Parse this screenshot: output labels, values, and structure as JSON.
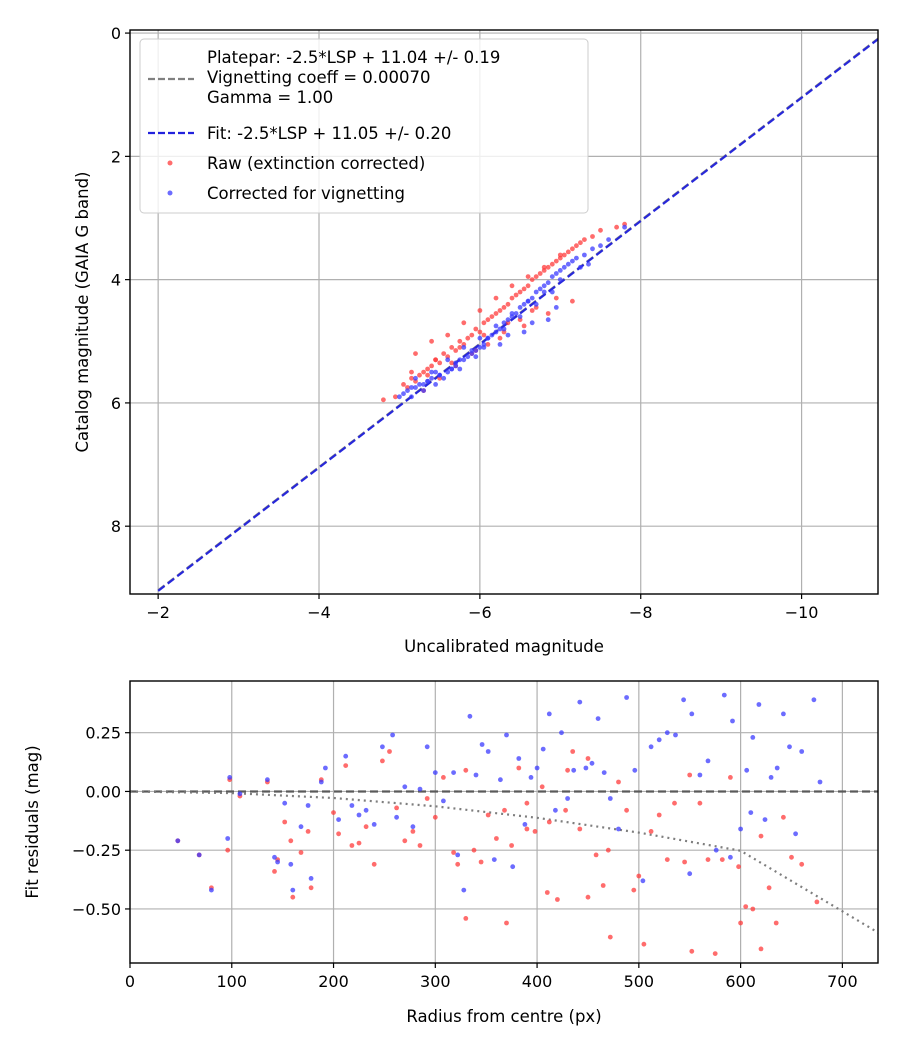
{
  "chart_data": [
    {
      "type": "scatter",
      "xlabel": "Uncalibrated magnitude",
      "ylabel": "Catalog magnitude (GAIA G band)",
      "xlim": [
        -1.65,
        -10.95
      ],
      "ylim": [
        9.1,
        -0.05
      ],
      "x_inverted": true,
      "y_inverted": true,
      "xticks": [
        -2,
        -4,
        -6,
        -8,
        -10
      ],
      "xtick_labels": [
        "−2",
        "−4",
        "−6",
        "−8",
        "−10"
      ],
      "yticks": [
        0,
        2,
        4,
        6,
        8
      ],
      "ytick_labels": [
        "0",
        "2",
        "4",
        "6",
        "8"
      ],
      "grid": true,
      "legend_position": "upper-left",
      "legend": [
        {
          "kind": "dash",
          "color": "#808080",
          "text": "Platepar: -2.5*LSP + 11.04 +/- 0.19\nVignetting coeff = 0.00070\nGamma = 1.00"
        },
        {
          "kind": "dash",
          "color": "#2222dd",
          "text": "Fit: -2.5*LSP + 11.05 +/- 0.20"
        },
        {
          "kind": "dot",
          "color": "#ff3b3b",
          "text": "Raw (extinction corrected)"
        },
        {
          "kind": "dot",
          "color": "#3b3bff",
          "text": "Corrected for vignetting"
        }
      ],
      "lines": [
        {
          "name": "Platepar",
          "color": "#808080",
          "style": "dashed",
          "x": [
            -2.0,
            -11.04
          ],
          "y": [
            9.04,
            0.0
          ]
        },
        {
          "name": "Fit",
          "color": "#2222dd",
          "style": "dashed",
          "x": [
            -2.0,
            -11.04
          ],
          "y": [
            9.05,
            0.01
          ]
        }
      ],
      "series": [
        {
          "name": "Raw (extinction corrected)",
          "color": "#ff3b3b",
          "x": [
            -4.8,
            -4.95,
            -5.05,
            -5.1,
            -5.15,
            -5.2,
            -5.25,
            -5.3,
            -5.35,
            -5.4,
            -5.45,
            -5.5,
            -5.55,
            -5.6,
            -5.65,
            -5.7,
            -5.75,
            -5.8,
            -5.85,
            -5.9,
            -5.95,
            -6.0,
            -6.05,
            -6.1,
            -6.15,
            -6.2,
            -6.25,
            -6.3,
            -6.35,
            -6.4,
            -6.45,
            -6.5,
            -6.55,
            -6.6,
            -6.65,
            -6.7,
            -6.75,
            -6.8,
            -6.85,
            -6.9,
            -6.95,
            -7.0,
            -7.05,
            -7.1,
            -7.15,
            -7.2,
            -7.25,
            -7.3,
            -7.4,
            -7.5,
            -7.7,
            -7.8,
            -5.2,
            -5.4,
            -5.6,
            -5.8,
            -6.0,
            -6.2,
            -6.4,
            -6.6,
            -6.8,
            -7.0,
            -5.3,
            -5.5,
            -5.7,
            -5.9,
            -6.1,
            -6.3,
            -6.5,
            -6.7,
            -5.15,
            -5.45,
            -5.75,
            -6.05,
            -6.35,
            -6.65,
            -6.95,
            -5.35,
            -5.65,
            -5.95,
            -6.25,
            -6.55,
            -6.85,
            -7.15
          ],
          "y": [
            5.95,
            5.9,
            5.7,
            5.75,
            5.6,
            5.65,
            5.55,
            5.5,
            5.45,
            5.4,
            5.3,
            5.35,
            5.2,
            5.25,
            5.1,
            5.15,
            5.0,
            5.05,
            4.95,
            4.9,
            4.8,
            4.85,
            4.7,
            4.65,
            4.6,
            4.55,
            4.5,
            4.45,
            4.4,
            4.3,
            4.25,
            4.2,
            4.15,
            4.1,
            4.0,
            3.95,
            3.9,
            3.85,
            3.8,
            3.75,
            3.7,
            3.65,
            3.6,
            3.55,
            3.5,
            3.45,
            3.4,
            3.35,
            3.3,
            3.2,
            3.15,
            3.1,
            5.2,
            5.0,
            4.9,
            4.7,
            4.5,
            4.3,
            4.1,
            3.95,
            3.8,
            3.6,
            5.8,
            5.6,
            5.4,
            5.2,
            5.05,
            4.85,
            4.65,
            4.45,
            5.5,
            5.3,
            5.1,
            4.9,
            4.7,
            4.5,
            4.3,
            5.55,
            5.35,
            5.15,
            4.95,
            4.75,
            4.55,
            4.35
          ]
        },
        {
          "name": "Corrected for vignetting",
          "color": "#3b3bff",
          "x": [
            -5.0,
            -5.05,
            -5.1,
            -5.15,
            -5.2,
            -5.25,
            -5.3,
            -5.35,
            -5.4,
            -5.45,
            -5.5,
            -5.55,
            -5.6,
            -5.65,
            -5.7,
            -5.75,
            -5.8,
            -5.85,
            -5.9,
            -5.95,
            -6.0,
            -6.05,
            -6.1,
            -6.15,
            -6.2,
            -6.25,
            -6.3,
            -6.35,
            -6.4,
            -6.45,
            -6.5,
            -6.55,
            -6.6,
            -6.65,
            -6.7,
            -6.75,
            -6.8,
            -6.85,
            -6.9,
            -6.95,
            -7.0,
            -7.05,
            -7.1,
            -7.15,
            -7.2,
            -7.3,
            -7.4,
            -7.5,
            -7.6,
            -7.8,
            -5.2,
            -5.4,
            -5.6,
            -5.8,
            -6.0,
            -6.2,
            -6.4,
            -6.6,
            -6.8,
            -7.0,
            -5.3,
            -5.5,
            -5.7,
            -5.9,
            -6.1,
            -6.3,
            -6.5,
            -6.7,
            -6.9,
            -5.15,
            -5.45,
            -5.75,
            -6.05,
            -6.35,
            -6.65,
            -6.95,
            -7.25,
            -5.35,
            -5.65,
            -5.95,
            -6.25,
            -6.55,
            -6.85,
            -7.35
          ],
          "y": [
            5.9,
            5.85,
            5.8,
            5.9,
            5.75,
            5.7,
            5.8,
            5.65,
            5.6,
            5.7,
            5.55,
            5.6,
            5.5,
            5.45,
            5.4,
            5.45,
            5.3,
            5.25,
            5.2,
            5.15,
            5.1,
            5.05,
            4.95,
            4.9,
            4.85,
            4.8,
            4.7,
            4.65,
            4.6,
            4.55,
            4.45,
            4.4,
            4.35,
            4.3,
            4.2,
            4.15,
            4.1,
            4.05,
            3.95,
            3.9,
            3.85,
            3.8,
            3.75,
            3.7,
            3.65,
            3.6,
            3.5,
            3.45,
            3.35,
            3.15,
            5.6,
            5.5,
            5.3,
            5.1,
            4.95,
            4.75,
            4.55,
            4.35,
            4.2,
            4.0,
            5.7,
            5.55,
            5.35,
            5.15,
            4.95,
            4.8,
            4.6,
            4.4,
            4.2,
            5.75,
            5.5,
            5.3,
            5.1,
            4.9,
            4.7,
            4.45,
            3.8,
            5.65,
            5.45,
            5.25,
            5.05,
            4.85,
            4.65,
            3.75
          ]
        }
      ]
    },
    {
      "type": "scatter",
      "xlabel": "Radius from centre (px)",
      "ylabel": "Fit residuals (mag)",
      "xlim": [
        0,
        735
      ],
      "ylim": [
        -0.73,
        0.47
      ],
      "xticks": [
        0,
        100,
        200,
        300,
        400,
        500,
        600,
        700
      ],
      "xtick_labels": [
        "0",
        "100",
        "200",
        "300",
        "400",
        "500",
        "600",
        "700"
      ],
      "yticks": [
        0.25,
        0.0,
        -0.25,
        -0.5
      ],
      "ytick_labels": [
        "0.25",
        "0.00",
        "−0.25",
        "−0.50"
      ],
      "grid": true,
      "lines": [
        {
          "name": "zero",
          "color": "#555555",
          "style": "dashed",
          "x": [
            0,
            735
          ],
          "y": [
            0,
            0
          ]
        },
        {
          "name": "vignetting",
          "color": "#777777",
          "style": "dotted",
          "x": [
            0,
            100,
            200,
            300,
            400,
            500,
            600,
            735
          ],
          "y": [
            0.0,
            -0.007,
            -0.028,
            -0.063,
            -0.112,
            -0.175,
            -0.252,
            -0.6
          ]
        }
      ],
      "series": [
        {
          "name": "Raw (extinction corrected)",
          "color": "#ff3b3b",
          "x": [
            47,
            68,
            80,
            96,
            98,
            108,
            135,
            142,
            145,
            152,
            158,
            160,
            168,
            175,
            178,
            188,
            200,
            205,
            212,
            218,
            225,
            232,
            240,
            248,
            255,
            262,
            270,
            278,
            285,
            292,
            300,
            308,
            318,
            322,
            330,
            338,
            345,
            352,
            360,
            368,
            375,
            382,
            390,
            398,
            405,
            412,
            420,
            428,
            435,
            442,
            450,
            458,
            465,
            472,
            480,
            488,
            495,
            505,
            512,
            520,
            528,
            535,
            545,
            552,
            560,
            568,
            575,
            582,
            590,
            598,
            605,
            612,
            620,
            628,
            635,
            642,
            650,
            660,
            675,
            330,
            370,
            410,
            450,
            500,
            550,
            600,
            620,
            470,
            430,
            390
          ],
          "y": [
            -0.21,
            -0.27,
            -0.41,
            -0.25,
            0.05,
            -0.02,
            0.04,
            -0.34,
            -0.29,
            -0.13,
            -0.21,
            -0.45,
            -0.26,
            -0.17,
            -0.41,
            0.05,
            -0.09,
            -0.18,
            0.11,
            -0.23,
            -0.22,
            -0.15,
            -0.31,
            0.13,
            0.17,
            -0.07,
            -0.21,
            -0.17,
            -0.23,
            -0.03,
            -0.11,
            0.06,
            -0.26,
            -0.31,
            0.09,
            -0.25,
            -0.3,
            -0.1,
            -0.2,
            -0.08,
            -0.23,
            0.1,
            -0.05,
            -0.17,
            0.02,
            -0.13,
            -0.46,
            -0.08,
            0.17,
            -0.16,
            -0.45,
            -0.27,
            -0.4,
            -0.62,
            0.04,
            -0.08,
            -0.42,
            -0.65,
            -0.17,
            -0.1,
            -0.29,
            -0.05,
            -0.3,
            -0.68,
            -0.05,
            -0.29,
            -0.69,
            -0.29,
            0.06,
            -0.32,
            -0.49,
            -0.5,
            -0.19,
            -0.41,
            -0.56,
            -0.11,
            -0.28,
            -0.31,
            -0.47,
            -0.54,
            -0.56,
            -0.43,
            0.14,
            -0.36,
            0.07,
            -0.56,
            -0.67,
            -0.25,
            0.09,
            -0.16
          ]
        },
        {
          "name": "Corrected for vignetting",
          "color": "#3b3bff",
          "x": [
            47,
            68,
            80,
            96,
            98,
            108,
            135,
            142,
            145,
            152,
            158,
            160,
            168,
            175,
            178,
            188,
            192,
            205,
            212,
            218,
            225,
            232,
            240,
            248,
            258,
            262,
            270,
            278,
            285,
            292,
            300,
            308,
            318,
            322,
            328,
            334,
            340,
            346,
            352,
            358,
            364,
            370,
            376,
            382,
            388,
            394,
            400,
            406,
            412,
            418,
            424,
            430,
            436,
            442,
            448,
            454,
            460,
            466,
            472,
            480,
            488,
            496,
            504,
            512,
            520,
            528,
            536,
            544,
            552,
            560,
            568,
            576,
            584,
            592,
            600,
            606,
            612,
            618,
            624,
            630,
            636,
            642,
            648,
            654,
            660,
            672,
            678,
            550,
            590,
            610
          ],
          "y": [
            -0.21,
            -0.27,
            -0.42,
            -0.2,
            0.06,
            -0.01,
            0.05,
            -0.28,
            -0.3,
            -0.05,
            -0.31,
            -0.42,
            -0.15,
            -0.06,
            -0.37,
            0.04,
            0.1,
            -0.12,
            0.15,
            -0.06,
            -0.1,
            -0.08,
            -0.14,
            0.19,
            0.24,
            -0.11,
            0.02,
            -0.15,
            0.01,
            0.19,
            0.08,
            -0.04,
            0.08,
            -0.27,
            -0.42,
            0.32,
            0.07,
            0.2,
            0.17,
            -0.29,
            0.05,
            0.24,
            -0.32,
            0.14,
            -0.14,
            0.06,
            0.1,
            0.18,
            0.33,
            -0.08,
            0.25,
            -0.03,
            0.09,
            0.38,
            0.1,
            0.12,
            0.31,
            0.08,
            -0.03,
            -0.16,
            0.4,
            0.09,
            -0.38,
            0.19,
            0.22,
            0.25,
            0.24,
            0.39,
            0.33,
            0.07,
            0.13,
            -0.25,
            0.41,
            0.3,
            -0.16,
            0.09,
            0.23,
            0.37,
            -0.12,
            0.06,
            0.1,
            0.33,
            0.19,
            -0.18,
            0.17,
            0.39,
            0.04,
            -0.35,
            -0.28,
            -0.09
          ]
        }
      ]
    }
  ]
}
